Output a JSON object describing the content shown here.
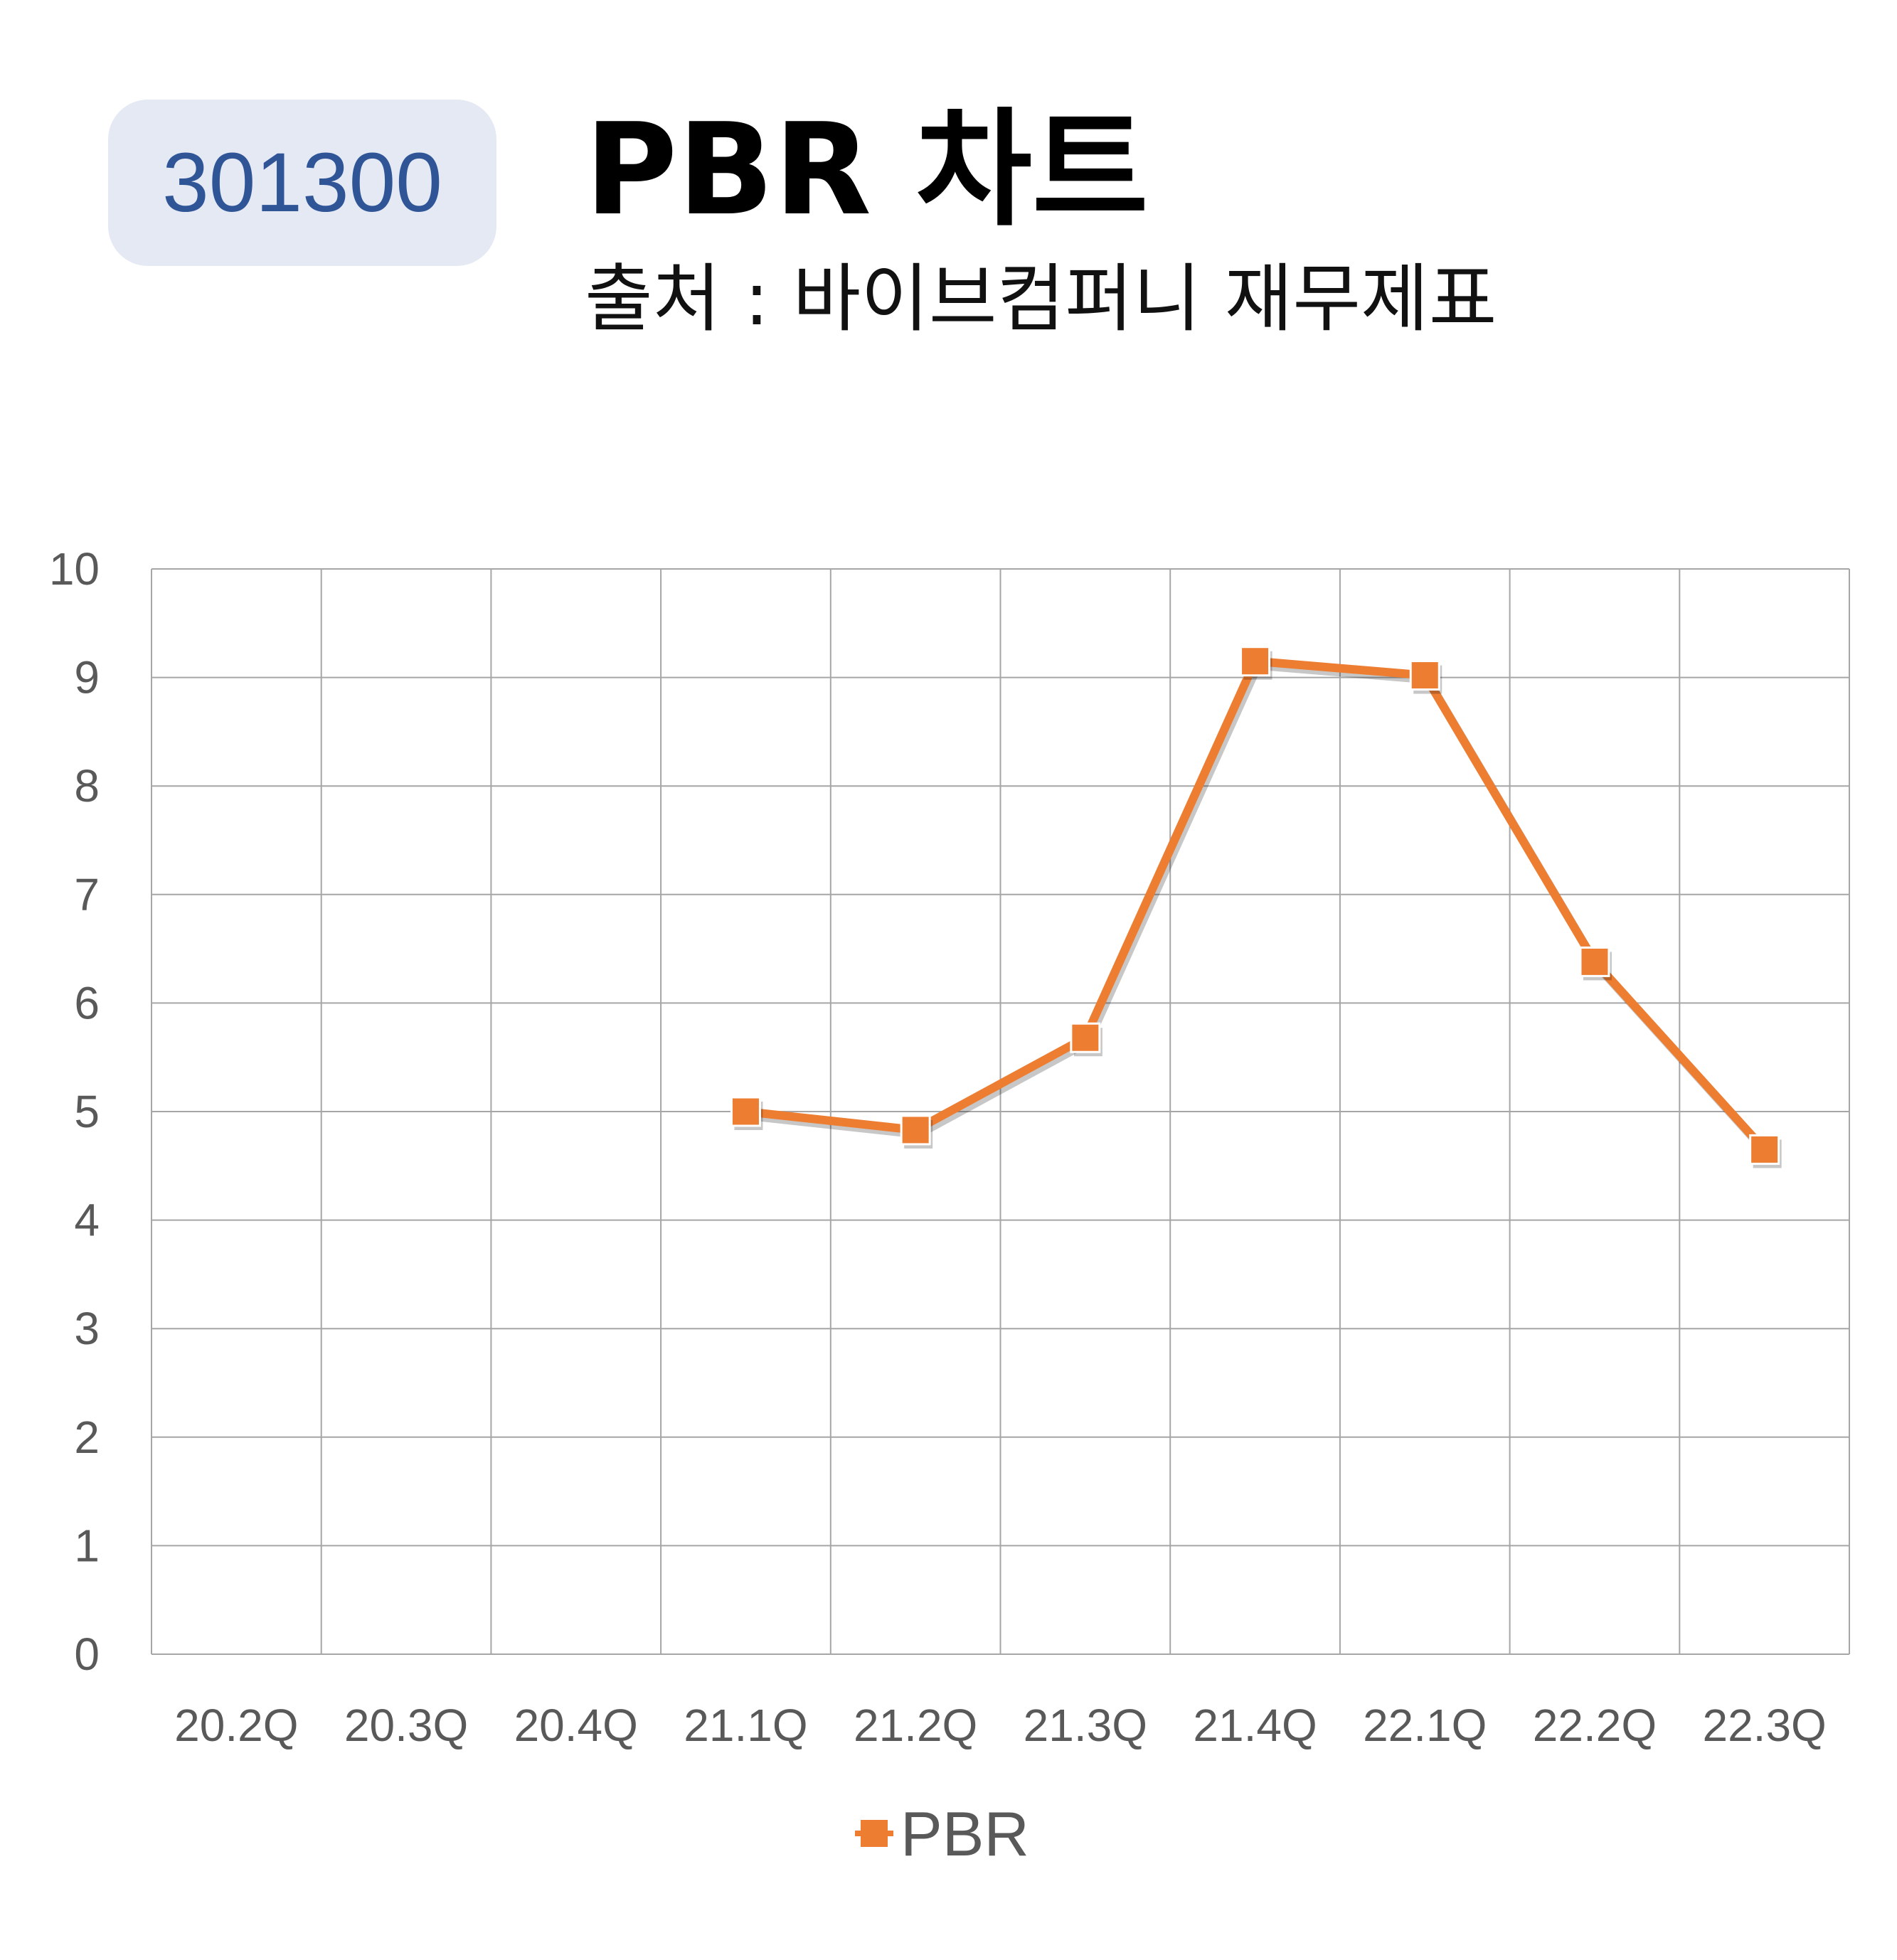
{
  "header": {
    "code": "301300",
    "title": "PBR 차트",
    "subtitle": "출처 : 바이브컴퍼니 재무제표"
  },
  "chart_data": {
    "type": "line",
    "categories": [
      "20.2Q",
      "20.3Q",
      "20.4Q",
      "21.1Q",
      "21.2Q",
      "21.3Q",
      "21.4Q",
      "22.1Q",
      "22.2Q",
      "22.3Q"
    ],
    "series": [
      {
        "name": "PBR",
        "color": "#ed7d31",
        "marker": "square",
        "values": [
          null,
          null,
          null,
          5.0,
          4.83,
          5.68,
          9.15,
          9.02,
          6.38,
          4.65
        ]
      }
    ],
    "yticks": [
      "0",
      "1",
      "2",
      "3",
      "4",
      "5",
      "6",
      "7",
      "8",
      "9",
      "10"
    ],
    "ylim": [
      0,
      10
    ],
    "grid": true,
    "legend_position": "bottom"
  }
}
